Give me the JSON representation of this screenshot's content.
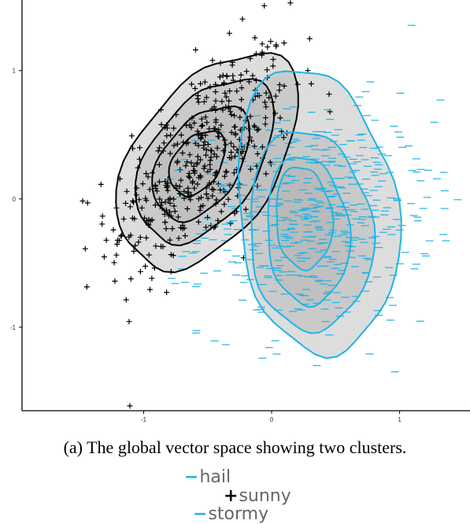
{
  "chart_data": {
    "type": "scatter",
    "title": "",
    "xlabel": "",
    "ylabel": "",
    "xlim": [
      -1.95,
      1.55
    ],
    "ylim": [
      -1.65,
      1.55
    ],
    "x_ticks": [
      "-1",
      "0",
      "1"
    ],
    "x_tick_values": [
      -1,
      0,
      1
    ],
    "y_ticks": [
      "-1",
      "0",
      "1"
    ],
    "y_tick_values": [
      -1,
      0,
      1
    ],
    "grid": false,
    "series": [
      {
        "marker": "+",
        "color": "#000000",
        "center": [
          -0.55,
          0.3
        ],
        "spread": [
          0.36,
          0.45
        ],
        "correlation": 0.62,
        "count": 420,
        "density_contours": [
          {
            "center": [
              -0.5,
              0.3
            ],
            "radii": [
              0.95,
              0.55
            ],
            "angle_deg": 55
          },
          {
            "center": [
              -0.52,
              0.3
            ],
            "radii": [
              0.72,
              0.42
            ],
            "angle_deg": 55
          },
          {
            "center": [
              -0.55,
              0.28
            ],
            "radii": [
              0.5,
              0.3
            ],
            "angle_deg": 55
          },
          {
            "center": [
              -0.58,
              0.28
            ],
            "radii": [
              0.28,
              0.18
            ],
            "angle_deg": 55
          }
        ]
      },
      {
        "marker": "-",
        "color": "#1eb4e6",
        "center": [
          0.35,
          -0.15
        ],
        "spread": [
          0.45,
          0.42
        ],
        "correlation": 0.1,
        "count": 520,
        "density_contours": [
          {
            "center": [
              0.35,
              -0.1
            ],
            "radii": [
              0.62,
              1.12
            ],
            "angle_deg": 8
          },
          {
            "center": [
              0.3,
              -0.25
            ],
            "radii": [
              0.48,
              0.78
            ],
            "angle_deg": 5
          },
          {
            "center": [
              0.28,
              -0.25
            ],
            "radii": [
              0.32,
              0.58
            ],
            "angle_deg": 5
          },
          {
            "center": [
              0.25,
              -0.15
            ],
            "radii": [
              0.22,
              0.4
            ],
            "angle_deg": 5
          }
        ]
      }
    ]
  },
  "caption": "(a) The global vector space showing two clusters.",
  "legend": [
    {
      "marker": "−",
      "label": "hail",
      "color": "#1eb4e6"
    },
    {
      "marker": "+",
      "label": "sunny",
      "color": "#000000"
    },
    {
      "marker": "−",
      "label": "stormy",
      "color": "#1eb4e6"
    }
  ],
  "colors": {
    "fill": "#b4b4b4",
    "axis": "#000000",
    "label_text": "#666666"
  }
}
